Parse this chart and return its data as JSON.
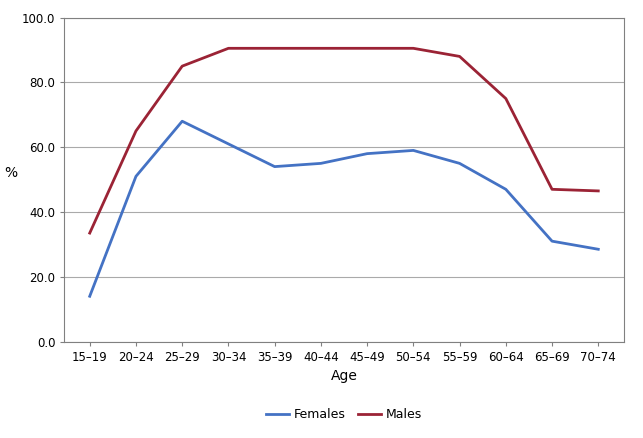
{
  "age_labels": [
    "15–19",
    "20–24",
    "25–29",
    "30–34",
    "35–39",
    "40–44",
    "45–49",
    "50–54",
    "55–59",
    "60–64",
    "65–69",
    "70–74"
  ],
  "females": [
    14.0,
    51.0,
    68.0,
    61.0,
    54.0,
    55.0,
    58.0,
    59.0,
    55.0,
    47.0,
    31.0,
    28.5
  ],
  "males": [
    33.5,
    65.0,
    85.0,
    90.5,
    90.5,
    90.5,
    90.5,
    90.5,
    88.0,
    75.0,
    47.0,
    46.5
  ],
  "female_color": "#4472C4",
  "male_color": "#9B2335",
  "ylim": [
    0.0,
    100.0
  ],
  "yticks": [
    0.0,
    20.0,
    40.0,
    60.0,
    80.0,
    100.0
  ],
  "ylabel": "%",
  "xlabel": "Age",
  "legend_labels": [
    "Females",
    "Males"
  ],
  "bg_color": "#FFFFFF",
  "plot_bg_color": "#FFFFFF",
  "grid_color": "#AAAAAA",
  "spine_color": "#808080",
  "line_width": 2.0,
  "tick_fontsize": 8.5,
  "label_fontsize": 10,
  "legend_fontsize": 9
}
